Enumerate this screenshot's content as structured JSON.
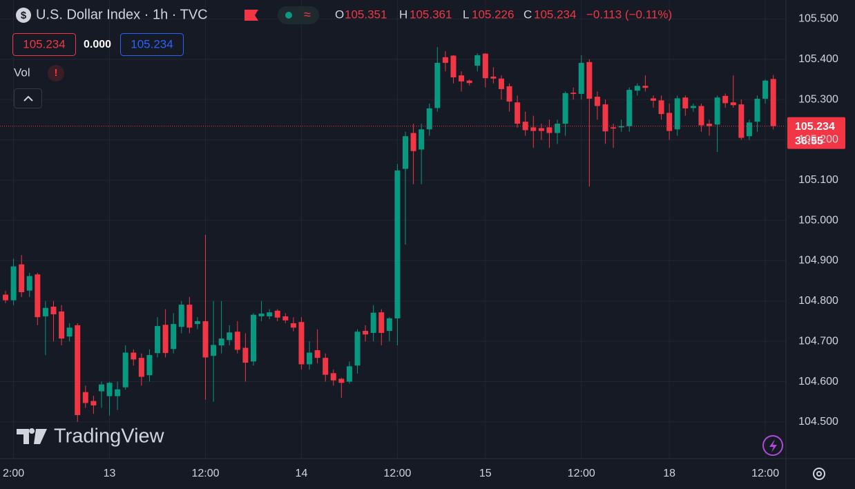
{
  "chart_data": {
    "type": "candlestick",
    "title": "U.S. Dollar Index · 1h · TVC",
    "header": {
      "open_key": "O",
      "open": "105.351",
      "high_key": "H",
      "high": "105.361",
      "low_key": "L",
      "low": "105.226",
      "close_key": "C",
      "close": "105.234",
      "change": "−0.113 (−0.11%)"
    },
    "quote_boxes": {
      "bid": "105.234",
      "spread": "0.000",
      "ask": "105.234"
    },
    "indicator": "Vol",
    "watermark": "TradingView",
    "price_tag": {
      "price": "105.234",
      "countdown": "36:55"
    },
    "up_color": "#089981",
    "down_color": "#f23645",
    "categories": [
      null,
      "2:00",
      null,
      null,
      null,
      null,
      null,
      null,
      null,
      null,
      null,
      null,
      null,
      "13",
      null,
      null,
      null,
      null,
      null,
      null,
      null,
      null,
      null,
      null,
      null,
      "12:00",
      null,
      null,
      null,
      null,
      null,
      null,
      null,
      null,
      null,
      null,
      null,
      "14",
      null,
      null,
      null,
      null,
      null,
      null,
      null,
      null,
      null,
      null,
      null,
      "12:00",
      null,
      null,
      null,
      null,
      null,
      null,
      null,
      null,
      null,
      null,
      "15",
      null,
      null,
      null,
      null,
      null,
      null,
      null,
      null,
      null,
      null,
      null,
      "12:00",
      null,
      null,
      null,
      null,
      null,
      null,
      null,
      null,
      null,
      null,
      "18",
      null,
      null,
      null,
      null,
      null,
      null,
      null,
      null,
      null,
      null,
      null,
      "12:00",
      null
    ],
    "open": [
      104.816,
      104.802,
      104.891,
      104.826,
      104.866,
      104.762,
      104.786,
      104.774,
      104.712,
      104.74,
      104.574,
      104.552,
      104.576,
      104.564,
      104.564,
      104.586,
      104.672,
      104.659,
      104.616,
      104.671,
      104.741,
      104.681,
      104.736,
      104.791,
      104.743,
      104.75,
      104.664,
      104.69,
      104.703,
      104.724,
      104.684,
      104.65,
      104.762,
      104.762,
      104.776,
      104.762,
      104.745,
      104.748,
      104.643,
      104.678,
      104.659,
      104.621,
      104.607,
      104.6,
      104.64,
      104.726,
      104.721,
      104.772,
      104.726,
      104.757,
      105.128,
      105.217,
      105.176,
      105.226,
      105.279,
      105.405,
      105.409,
      105.36,
      105.347,
      105.384,
      105.414,
      105.357,
      105.352,
      105.333,
      105.293,
      105.245,
      105.231,
      105.229,
      105.231,
      105.217,
      105.24,
      105.317,
      105.314,
      105.393,
      105.307,
      105.288,
      105.231,
      105.231,
      105.234,
      105.322,
      105.334,
      105.303,
      105.298,
      105.267,
      105.226,
      105.305,
      105.279,
      105.284,
      105.24,
      105.238,
      105.309,
      105.293,
      105.288,
      105.209,
      105.245,
      105.302,
      105.351
    ],
    "high": [
      104.825,
      104.905,
      104.914,
      104.87,
      104.87,
      104.8,
      104.8,
      104.79,
      104.745,
      104.745,
      104.59,
      104.565,
      104.6,
      104.6,
      104.6,
      104.69,
      104.68,
      104.67,
      104.68,
      104.76,
      104.78,
      104.77,
      104.8,
      104.81,
      104.76,
      104.964,
      104.8,
      104.8,
      104.74,
      104.75,
      104.72,
      104.77,
      104.8,
      104.78,
      104.78,
      104.77,
      104.76,
      104.76,
      104.7,
      104.73,
      104.67,
      104.63,
      104.61,
      104.65,
      104.73,
      104.74,
      104.79,
      104.78,
      104.76,
      105.14,
      105.22,
      105.24,
      105.24,
      105.29,
      105.43,
      105.42,
      105.41,
      105.37,
      105.35,
      105.415,
      105.415,
      105.38,
      105.36,
      105.34,
      105.31,
      105.27,
      105.26,
      105.24,
      105.25,
      105.25,
      105.32,
      105.33,
      105.41,
      105.4,
      105.32,
      105.3,
      105.24,
      105.25,
      105.33,
      105.34,
      105.36,
      105.31,
      105.31,
      105.29,
      105.31,
      105.31,
      105.29,
      105.29,
      105.25,
      105.31,
      105.315,
      105.36,
      105.3,
      105.25,
      105.31,
      105.35,
      105.361
    ],
    "low": [
      104.795,
      104.79,
      104.81,
      104.81,
      104.74,
      104.666,
      104.7,
      104.69,
      104.7,
      104.5,
      104.535,
      104.52,
      104.535,
      104.516,
      104.53,
      104.58,
      104.64,
      104.59,
      104.6,
      104.66,
      104.66,
      104.67,
      104.72,
      104.72,
      104.73,
      104.555,
      104.55,
      104.67,
      104.69,
      104.67,
      104.6,
      104.64,
      104.75,
      104.755,
      104.75,
      104.745,
      104.725,
      104.63,
      104.63,
      104.645,
      104.6,
      104.59,
      104.56,
      104.595,
      104.62,
      104.7,
      104.7,
      104.69,
      104.7,
      104.69,
      104.94,
      105.09,
      105.09,
      105.21,
      105.27,
      105.37,
      105.34,
      105.32,
      105.335,
      105.37,
      105.33,
      105.34,
      105.3,
      105.27,
      105.23,
      105.21,
      105.18,
      105.2,
      105.18,
      105.19,
      105.21,
      105.3,
      105.3,
      105.084,
      105.25,
      105.19,
      105.18,
      105.22,
      105.22,
      105.31,
      105.32,
      105.28,
      105.25,
      105.2,
      105.21,
      105.26,
      105.27,
      105.22,
      105.21,
      105.17,
      105.28,
      105.28,
      105.2,
      105.2,
      105.22,
      105.29,
      105.226
    ],
    "close": [
      104.802,
      104.886,
      104.822,
      104.862,
      104.76,
      104.783,
      104.767,
      104.707,
      104.734,
      104.517,
      104.547,
      104.541,
      104.593,
      104.597,
      104.581,
      104.672,
      104.655,
      104.612,
      104.666,
      104.738,
      104.671,
      104.743,
      104.791,
      104.734,
      104.75,
      104.66,
      104.691,
      104.707,
      104.722,
      104.679,
      104.647,
      104.766,
      104.769,
      104.772,
      104.759,
      104.752,
      104.734,
      104.643,
      104.672,
      104.659,
      104.617,
      104.603,
      104.597,
      104.638,
      104.724,
      104.717,
      104.771,
      104.721,
      104.757,
      105.124,
      105.209,
      105.172,
      105.226,
      105.278,
      105.391,
      105.391,
      105.355,
      105.345,
      105.341,
      105.41,
      105.353,
      105.352,
      105.326,
      105.295,
      105.24,
      105.224,
      105.222,
      105.222,
      105.217,
      105.24,
      105.316,
      105.314,
      105.391,
      105.302,
      105.284,
      105.221,
      105.228,
      105.234,
      105.324,
      105.334,
      105.329,
      105.297,
      105.264,
      105.222,
      105.303,
      105.278,
      105.284,
      105.236,
      105.234,
      105.305,
      105.291,
      105.286,
      105.205,
      105.243,
      105.302,
      105.347,
      105.234
    ],
    "ylim": [
      104.409,
      105.547
    ],
    "yticks": [
      {
        "value": 104.5,
        "label": "104.500"
      },
      {
        "value": 104.6,
        "label": "104.600"
      },
      {
        "value": 104.7,
        "label": "104.700"
      },
      {
        "value": 104.8,
        "label": "104.800"
      },
      {
        "value": 104.9,
        "label": "104.900"
      },
      {
        "value": 105.0,
        "label": "105.000"
      },
      {
        "value": 105.1,
        "label": "105.100"
      },
      {
        "value": 105.2,
        "label": "105.200"
      },
      {
        "value": 105.3,
        "label": "105.300"
      },
      {
        "value": 105.4,
        "label": "105.400"
      },
      {
        "value": 105.5,
        "label": "105.500"
      }
    ],
    "grid": true
  }
}
